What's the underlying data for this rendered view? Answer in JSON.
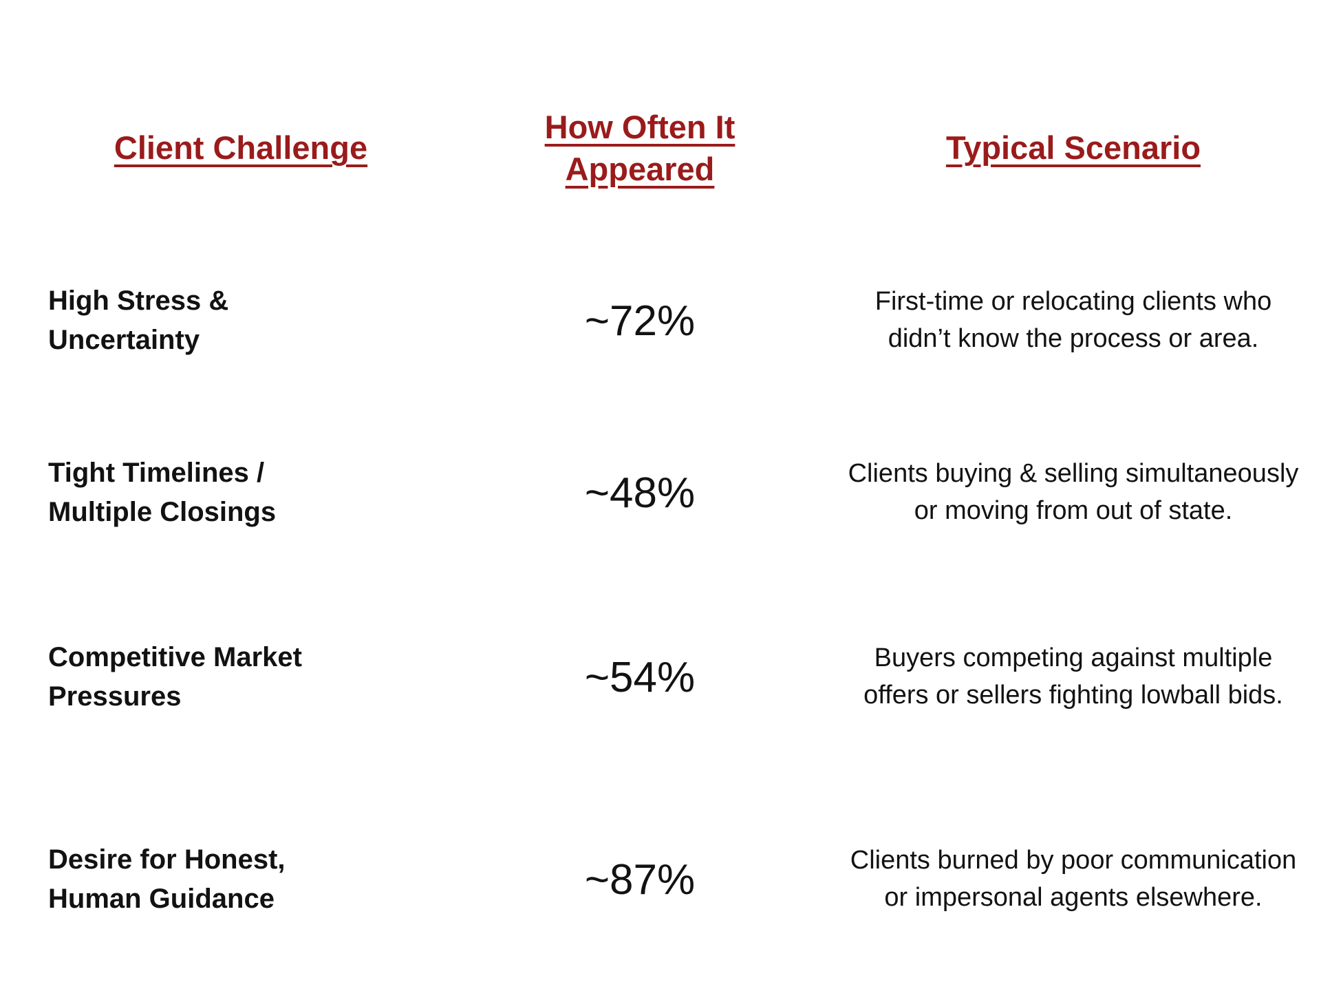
{
  "colors": {
    "header_text": "#9a1b1b",
    "body_text": "#121212",
    "background": "#ffffff"
  },
  "table": {
    "headers": {
      "challenge": "Client Challenge",
      "frequency": "How Often It Appeared",
      "scenario": "Typical Scenario"
    },
    "rows": [
      {
        "challenge": "High Stress & Uncertainty",
        "frequency": "~72%",
        "scenario": "First-time or relocating clients who didn’t know the process or area."
      },
      {
        "challenge": "Tight Timelines / Multiple Closings",
        "frequency": "~48%",
        "scenario": "Clients buying & selling simultaneously or moving from out of state."
      },
      {
        "challenge": "Competitive Market Pressures",
        "frequency": "~54%",
        "scenario": "Buyers competing against multiple offers or sellers fighting lowball bids."
      },
      {
        "challenge": "Desire for Honest, Human Guidance",
        "frequency": "~87%",
        "scenario": "Clients burned by poor communication or impersonal agents elsewhere."
      }
    ]
  },
  "chart_data": {
    "type": "table",
    "title": "",
    "columns": [
      "Client Challenge",
      "How Often It Appeared",
      "Typical Scenario"
    ],
    "rows": [
      [
        "High Stress & Uncertainty",
        "~72%",
        "First-time or relocating clients who didn’t know the process or area."
      ],
      [
        "Tight Timelines / Multiple Closings",
        "~48%",
        "Clients buying & selling simultaneously or moving from out of state."
      ],
      [
        "Competitive Market Pressures",
        "~54%",
        "Buyers competing against multiple offers or sellers fighting lowball bids."
      ],
      [
        "Desire for Honest, Human Guidance",
        "~87%",
        "Clients burned by poor communication or impersonal agents elsewhere."
      ]
    ],
    "frequencies_percent": [
      72,
      48,
      54,
      87
    ],
    "layout": {
      "header_style": "bold underlined dark-red",
      "column_alignment": [
        "left",
        "center",
        "center"
      ],
      "grid": false
    }
  }
}
